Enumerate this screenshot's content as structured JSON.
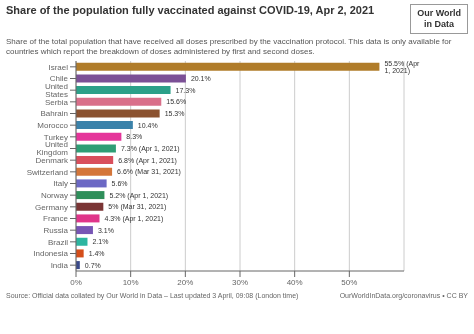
{
  "chart_data": {
    "type": "bar",
    "orientation": "horizontal",
    "title": "Share of the population fully vaccinated against COVID-19, Apr 2, 2021",
    "subtitle": "Share of the total population that have received all doses prescribed by the vaccination protocol. This data is only available for\ncountries which report the breakdown of doses administered by first and second doses.",
    "annotations": [
      "Source: Official data collated by Our World in Data – Last updated 3 April, 09:08 (London time)",
      "OurWorldInData.org/coronavirus • CC BY",
      "Our World\nin Data"
    ],
    "categories": [
      "Israel",
      "Chile",
      "United States",
      "Serbia",
      "Bahrain",
      "Morocco",
      "Turkey",
      "United Kingdom",
      "Denmark",
      "Switzerland",
      "Italy",
      "Norway",
      "Germany",
      "France",
      "Russia",
      "Brazil",
      "Indonesia",
      "India"
    ],
    "values": [
      55.5,
      20.1,
      17.3,
      15.6,
      15.3,
      10.4,
      8.3,
      7.3,
      6.8,
      6.6,
      5.6,
      5.2,
      5.0,
      4.3,
      3.1,
      2.1,
      1.4,
      0.7
    ],
    "value_labels": [
      "55.5% (Apr 1, 2021)",
      "20.1%",
      "17.3%",
      "15.6%",
      "15.3%",
      "10.4%",
      "8.3%",
      "7.3% (Apr 1, 2021)",
      "6.8% (Apr 1, 2021)",
      "6.6% (Mar 31, 2021)",
      "5.6%",
      "5.2% (Apr 1, 2021)",
      "5% (Mar 31, 2021)",
      "4.3% (Apr 1, 2021)",
      "3.1%",
      "2.1%",
      "1.4%",
      "0.7%"
    ],
    "data_labels": true,
    "colors": [
      "#b07c2a",
      "#7b5096",
      "#2ca089",
      "#d96f8a",
      "#8b5230",
      "#3b82aa",
      "#e5359a",
      "#2e9e75",
      "#d94f5c",
      "#d4763a",
      "#6b68c4",
      "#2e8f5a",
      "#7a3535",
      "#e0358a",
      "#7755b5",
      "#2db5a0",
      "#d44e1a",
      "#3a4a8a"
    ],
    "xlim": [
      0,
      60
    ],
    "xticks": [
      {
        "value": 0,
        "label": "0%"
      },
      {
        "value": 10,
        "label": "10%"
      },
      {
        "value": 20,
        "label": "20%"
      },
      {
        "value": 30,
        "label": "30%"
      },
      {
        "value": 40,
        "label": "40%"
      },
      {
        "value": 50,
        "label": "50%"
      }
    ],
    "grid": true
  }
}
